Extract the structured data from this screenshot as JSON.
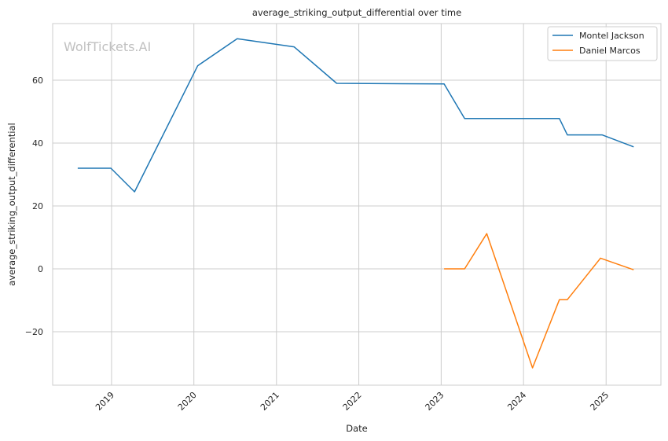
{
  "chart_data": {
    "type": "line",
    "title": "average_striking_output_differential over time",
    "xlabel": "Date",
    "ylabel": "average_striking_output_differential",
    "watermark": "WolfTickets.AI",
    "xlim": [
      "2018-04-15",
      "2025-09-01"
    ],
    "ylim": [
      -37,
      78
    ],
    "x_ticks": [
      "2019",
      "2020",
      "2021",
      "2022",
      "2023",
      "2024",
      "2025"
    ],
    "y_ticks": [
      60,
      40,
      20,
      0,
      -20
    ],
    "y_tick_labels": [
      "60",
      "40",
      "20",
      "0",
      "−20"
    ],
    "grid": true,
    "legend": "top-right",
    "series": [
      {
        "name": "Montel Jackson",
        "color": "#1f77b4",
        "points": [
          {
            "x": "2018-08-04",
            "y": 32.0
          },
          {
            "x": "2018-12-29",
            "y": 32.0
          },
          {
            "x": "2019-04-13",
            "y": 24.5
          },
          {
            "x": "2020-01-18",
            "y": 64.6
          },
          {
            "x": "2020-07-11",
            "y": 73.2
          },
          {
            "x": "2021-03-20",
            "y": 70.6
          },
          {
            "x": "2021-09-25",
            "y": 59.0
          },
          {
            "x": "2023-01-14",
            "y": 58.8
          },
          {
            "x": "2023-04-15",
            "y": 47.8
          },
          {
            "x": "2024-06-08",
            "y": 47.8
          },
          {
            "x": "2024-07-13",
            "y": 42.6
          },
          {
            "x": "2024-12-14",
            "y": 42.6
          },
          {
            "x": "2025-05-03",
            "y": 38.8
          }
        ]
      },
      {
        "name": "Daniel Marcos",
        "color": "#ff7f0e",
        "points": [
          {
            "x": "2023-01-14",
            "y": 0.0
          },
          {
            "x": "2023-04-15",
            "y": 0.0
          },
          {
            "x": "2023-07-22",
            "y": 11.2
          },
          {
            "x": "2024-02-10",
            "y": -31.5
          },
          {
            "x": "2024-06-08",
            "y": -9.8
          },
          {
            "x": "2024-07-13",
            "y": -9.8
          },
          {
            "x": "2024-12-07",
            "y": 3.4
          },
          {
            "x": "2025-05-03",
            "y": -0.3
          }
        ]
      }
    ]
  }
}
